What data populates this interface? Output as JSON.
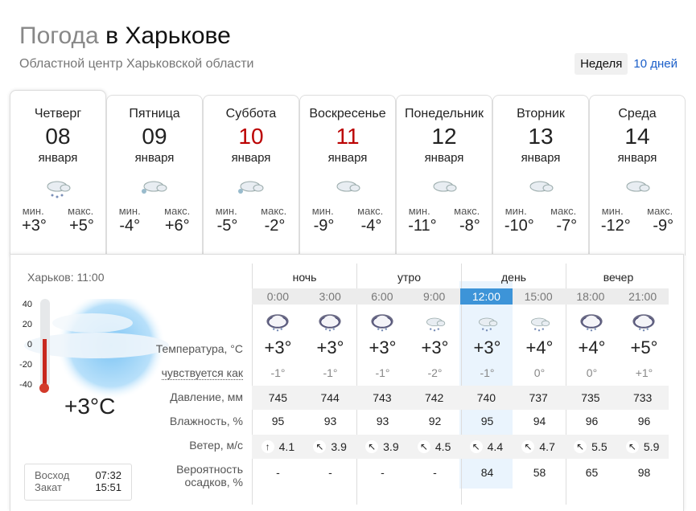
{
  "header": {
    "title_gray": "Погода",
    "title_main": "в Харькове",
    "subtitle": "Областной центр Харьковской области"
  },
  "view_switch": {
    "week": "Неделя",
    "ten_days": "10 дней"
  },
  "days": [
    {
      "weekday": "Четверг",
      "date": "08",
      "month": "января",
      "min_label": "мин.",
      "max_label": "макс.",
      "min": "+3°",
      "max": "+5°",
      "weekend": false,
      "icon": "cloud-rain-icon"
    },
    {
      "weekday": "Пятница",
      "date": "09",
      "month": "января",
      "min_label": "мин.",
      "max_label": "макс.",
      "min": "-4°",
      "max": "+6°",
      "weekend": false,
      "icon": "cloud-snow-icon"
    },
    {
      "weekday": "Суббота",
      "date": "10",
      "month": "января",
      "min_label": "мин.",
      "max_label": "макс.",
      "min": "-5°",
      "max": "-2°",
      "weekend": true,
      "icon": "cloud-snow-icon"
    },
    {
      "weekday": "Воскресенье",
      "date": "11",
      "month": "января",
      "min_label": "мин.",
      "max_label": "макс.",
      "min": "-9°",
      "max": "-4°",
      "weekend": true,
      "icon": "cloud-icon"
    },
    {
      "weekday": "Понедельник",
      "date": "12",
      "month": "января",
      "min_label": "мин.",
      "max_label": "макс.",
      "min": "-11°",
      "max": "-8°",
      "weekend": false,
      "icon": "cloud-icon"
    },
    {
      "weekday": "Вторник",
      "date": "13",
      "month": "января",
      "min_label": "мин.",
      "max_label": "макс.",
      "min": "-10°",
      "max": "-7°",
      "weekend": false,
      "icon": "cloud-icon"
    },
    {
      "weekday": "Среда",
      "date": "14",
      "month": "января",
      "min_label": "мин.",
      "max_label": "макс.",
      "min": "-12°",
      "max": "-9°",
      "weekend": false,
      "icon": "cloud-icon"
    }
  ],
  "current": {
    "city_time": "Харьков: 11:00",
    "temp": "+3°C",
    "thermo_scale": [
      "40",
      "20",
      "0",
      "-20",
      "-40"
    ],
    "thermo_value_c": 3,
    "sunrise_label": "Восход",
    "sunrise": "07:32",
    "sunset_label": "Закат",
    "sunset": "15:51"
  },
  "labels": {
    "temp": "Температура, °C",
    "feels": "чувствуется как",
    "pressure": "Давление, мм",
    "humidity": "Влажность, %",
    "wind": "Ветер, м/с",
    "precip_1": "Вероятность",
    "precip_2": "осадков, %"
  },
  "periods": [
    "ночь",
    "утро",
    "день",
    "вечер"
  ],
  "hours": [
    {
      "time": "0:00",
      "icon": "night-cloud-rain-icon",
      "temp": "+3°",
      "feels": "-1°",
      "pressure": "745",
      "humidity": "95",
      "wind_dir": "↑",
      "wind": "4.1",
      "precip": "-"
    },
    {
      "time": "3:00",
      "icon": "night-cloud-rain-icon",
      "temp": "+3°",
      "feels": "-1°",
      "pressure": "744",
      "humidity": "93",
      "wind_dir": "↖",
      "wind": "3.9",
      "precip": "-"
    },
    {
      "time": "6:00",
      "icon": "night-cloud-rain-icon",
      "temp": "+3°",
      "feels": "-1°",
      "pressure": "743",
      "humidity": "93",
      "wind_dir": "↖",
      "wind": "3.9",
      "precip": "-"
    },
    {
      "time": "9:00",
      "icon": "cloud-rain-icon",
      "temp": "+3°",
      "feels": "-2°",
      "pressure": "742",
      "humidity": "92",
      "wind_dir": "↖",
      "wind": "4.5",
      "precip": "-"
    },
    {
      "time": "12:00",
      "icon": "cloud-rain-icon",
      "temp": "+3°",
      "feels": "-1°",
      "pressure": "740",
      "humidity": "95",
      "wind_dir": "↖",
      "wind": "4.4",
      "precip": "84",
      "selected": true
    },
    {
      "time": "15:00",
      "icon": "cloud-rain-icon",
      "temp": "+4°",
      "feels": "0°",
      "pressure": "737",
      "humidity": "94",
      "wind_dir": "↖",
      "wind": "4.7",
      "precip": "58"
    },
    {
      "time": "18:00",
      "icon": "night-cloud-rain-icon",
      "temp": "+4°",
      "feels": "0°",
      "pressure": "735",
      "humidity": "96",
      "wind_dir": "↖",
      "wind": "5.5",
      "precip": "65"
    },
    {
      "time": "21:00",
      "icon": "night-cloud-rain-icon",
      "temp": "+5°",
      "feels": "+1°",
      "pressure": "733",
      "humidity": "96",
      "wind_dir": "↖",
      "wind": "5.9",
      "precip": "98"
    }
  ],
  "colors": {
    "accent": "#3d94d8",
    "weekend": "#bb0000",
    "link": "#1a5ec9"
  }
}
